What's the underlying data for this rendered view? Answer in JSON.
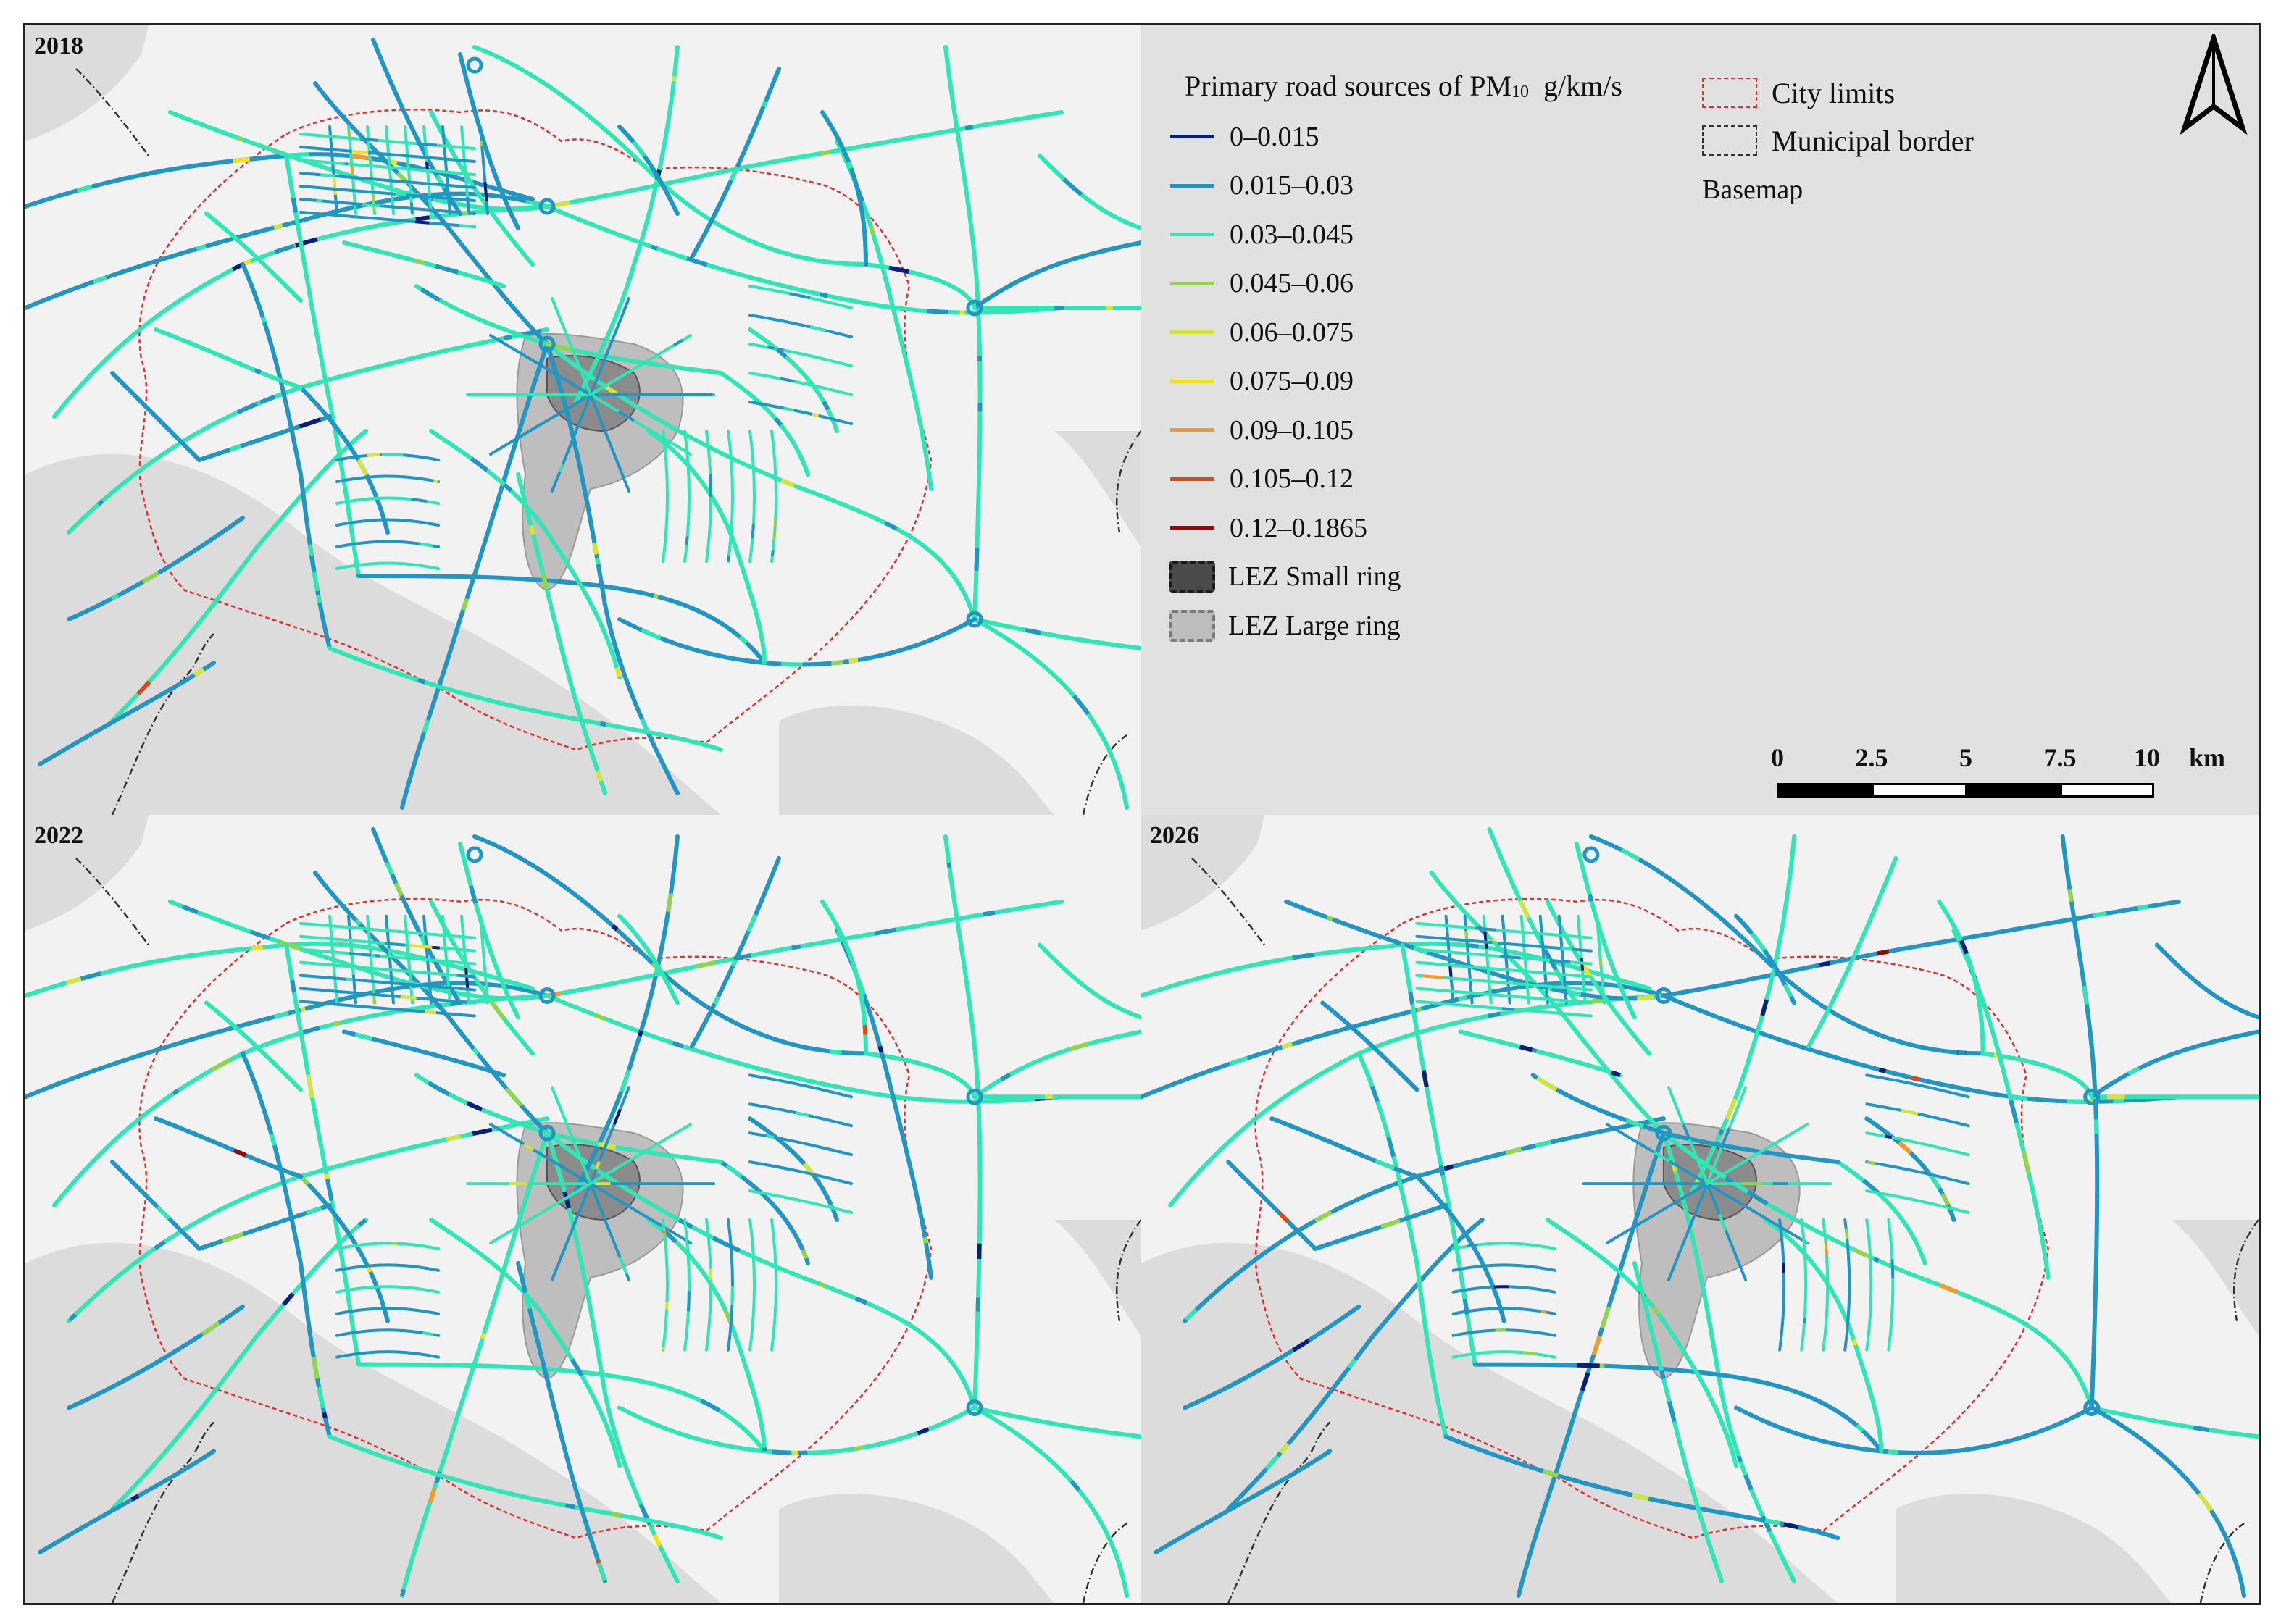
{
  "panels": [
    {
      "year": "2018"
    },
    {
      "year": "2022"
    },
    {
      "year": "2026"
    }
  ],
  "legend": {
    "title_main": "Primary road sources of PM",
    "title_sub": "10",
    "title_unit": "g/km/s",
    "classes": [
      {
        "label": "0–0.015",
        "color": "#0a1f7a"
      },
      {
        "label": "0.015–0.03",
        "color": "#2196c3"
      },
      {
        "label": "0.03–0.045",
        "color": "#2fe6b4"
      },
      {
        "label": "0.045–0.06",
        "color": "#8fd64a"
      },
      {
        "label": "0.06–0.075",
        "color": "#d2e63a"
      },
      {
        "label": "0.075–0.09",
        "color": "#f2e01c"
      },
      {
        "label": "0.09–0.105",
        "color": "#f29a2a"
      },
      {
        "label": "0.105–0.12",
        "color": "#d84a18"
      },
      {
        "label": "0.12–0.1865",
        "color": "#8e0c0c"
      }
    ],
    "zones": [
      {
        "label": "LEZ Small ring",
        "fill": "#4a4a4a",
        "border": "#1a1a1a"
      },
      {
        "label": "LEZ Large ring",
        "fill": "#bdbdbd",
        "border": "#7a7a7a"
      }
    ],
    "boundaries": [
      {
        "label": "City limits",
        "color": "#e23030"
      },
      {
        "label": "Municipal border",
        "color": "#333333"
      }
    ],
    "basemap_label": "Basemap"
  },
  "scale_bar": {
    "ticks": [
      "0",
      "2.5",
      "5",
      "7.5",
      "10"
    ],
    "unit": "km"
  }
}
